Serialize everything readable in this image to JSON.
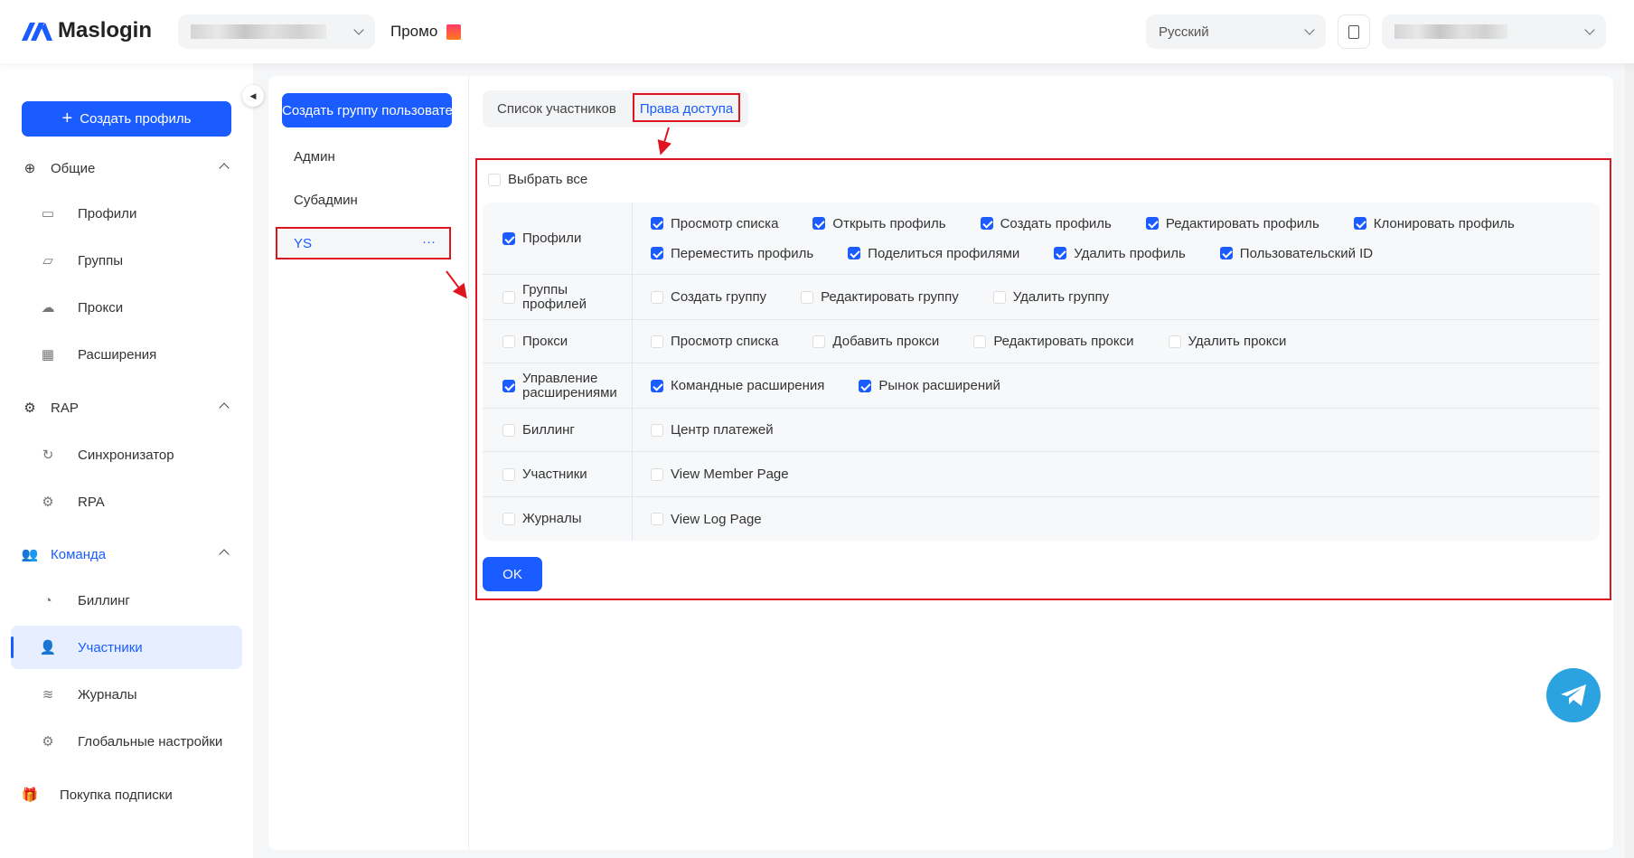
{
  "header": {
    "logo": "Maslogin",
    "promo": "Промо",
    "language": "Русский"
  },
  "sidebar": {
    "create_profile": "Создать профиль",
    "sections": [
      {
        "label": "Общие",
        "items": [
          "Профили",
          "Группы",
          "Прокси",
          "Расширения"
        ]
      },
      {
        "label": "RAP",
        "items": [
          "Синхронизатор",
          "RPA"
        ]
      },
      {
        "label": "Команда",
        "items": [
          "Биллинг",
          "Участники",
          "Журналы",
          "Глобальные настройки"
        ]
      }
    ],
    "subscription": "Покупка подписки",
    "active_item": "Участники"
  },
  "groups": {
    "create_button": "Создать группу пользовате",
    "items": [
      "Админ",
      "Субадмин",
      "YS"
    ],
    "selected": "YS",
    "more": "···"
  },
  "tabs": [
    {
      "label": "Список участников",
      "active": false
    },
    {
      "label": "Права доступа",
      "active": true
    }
  ],
  "permissions": {
    "select_all": {
      "label": "Выбрать все",
      "checked": false
    },
    "rows": [
      {
        "label": "Профили",
        "checked": true,
        "options": [
          [
            {
              "label": "Просмотр списка",
              "checked": true
            },
            {
              "label": "Открыть профиль",
              "checked": true
            },
            {
              "label": "Создать профиль",
              "checked": true
            },
            {
              "label": "Редактировать профиль",
              "checked": true
            },
            {
              "label": "Клонировать профиль",
              "checked": true
            }
          ],
          [
            {
              "label": "Переместить профиль",
              "checked": true
            },
            {
              "label": "Поделиться профилями",
              "checked": true
            },
            {
              "label": "Удалить профиль",
              "checked": true
            },
            {
              "label": "Пользовательский ID",
              "checked": true
            }
          ]
        ]
      },
      {
        "label": "Группы профилей",
        "checked": false,
        "options": [
          [
            {
              "label": "Создать группу",
              "checked": false
            },
            {
              "label": "Редактировать группу",
              "checked": false
            },
            {
              "label": "Удалить группу",
              "checked": false
            }
          ]
        ]
      },
      {
        "label": "Прокси",
        "checked": false,
        "options": [
          [
            {
              "label": "Просмотр списка",
              "checked": false
            },
            {
              "label": "Добавить прокси",
              "checked": false
            },
            {
              "label": "Редактировать прокси",
              "checked": false
            },
            {
              "label": "Удалить прокси",
              "checked": false
            }
          ]
        ]
      },
      {
        "label": "Управление расширениями",
        "checked": true,
        "options": [
          [
            {
              "label": "Командные расширения",
              "checked": true
            },
            {
              "label": "Рынок расширений",
              "checked": true
            }
          ]
        ]
      },
      {
        "label": "Биллинг",
        "checked": false,
        "options": [
          [
            {
              "label": "Центр платежей",
              "checked": false
            }
          ]
        ]
      },
      {
        "label": "Участники",
        "checked": false,
        "options": [
          [
            {
              "label": "View Member Page",
              "checked": false
            }
          ]
        ]
      },
      {
        "label": "Журналы",
        "checked": false,
        "options": [
          [
            {
              "label": "View Log Page",
              "checked": false
            }
          ]
        ]
      }
    ],
    "ok": "OK"
  },
  "colors": {
    "accent": "#1a5cff",
    "annotation": "#e0141e",
    "telegram": "#2aa3e0"
  }
}
